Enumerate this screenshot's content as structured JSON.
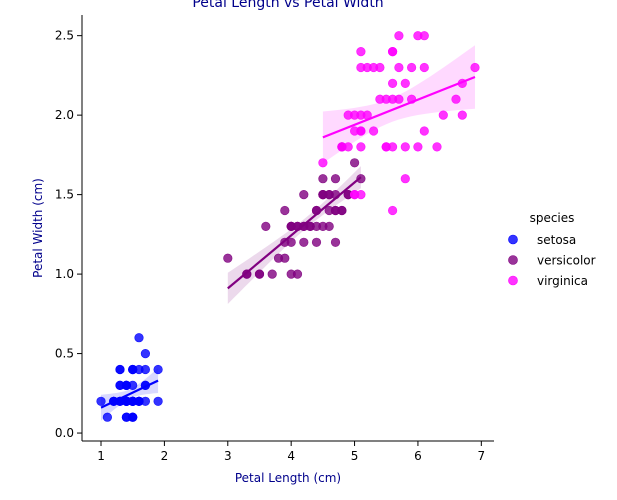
{
  "chart_data": {
    "type": "scatter",
    "title": "Petal Length vs Petal Width",
    "xlabel": "Petal Length (cm)",
    "ylabel": "Petal Width (cm)",
    "xlim": [
      0.7,
      7.2
    ],
    "ylim": [
      -0.05,
      2.63
    ],
    "xticks": [
      1,
      2,
      3,
      4,
      5,
      6,
      7
    ],
    "yticks": [
      0.0,
      0.5,
      1.0,
      1.5,
      2.0,
      2.5
    ],
    "grid": false,
    "legend": {
      "title": "species",
      "placement": "right"
    },
    "series": [
      {
        "name": "setosa",
        "color": "#0000ff",
        "regression": {
          "x": [
            1.0,
            1.9
          ],
          "y": [
            0.16,
            0.33
          ]
        },
        "points": [
          [
            1.0,
            0.2
          ],
          [
            1.1,
            0.1
          ],
          [
            1.2,
            0.2
          ],
          [
            1.2,
            0.2
          ],
          [
            1.3,
            0.2
          ],
          [
            1.3,
            0.3
          ],
          [
            1.3,
            0.4
          ],
          [
            1.3,
            0.2
          ],
          [
            1.4,
            0.2
          ],
          [
            1.4,
            0.3
          ],
          [
            1.4,
            0.1
          ],
          [
            1.4,
            0.2
          ],
          [
            1.4,
            0.3
          ],
          [
            1.4,
            0.2
          ],
          [
            1.4,
            0.2
          ],
          [
            1.4,
            0.1
          ],
          [
            1.5,
            0.2
          ],
          [
            1.5,
            0.4
          ],
          [
            1.5,
            0.1
          ],
          [
            1.5,
            0.2
          ],
          [
            1.5,
            0.3
          ],
          [
            1.5,
            0.2
          ],
          [
            1.5,
            0.4
          ],
          [
            1.5,
            0.1
          ],
          [
            1.5,
            0.2
          ],
          [
            1.6,
            0.2
          ],
          [
            1.6,
            0.6
          ],
          [
            1.6,
            0.4
          ],
          [
            1.6,
            0.2
          ],
          [
            1.6,
            0.2
          ],
          [
            1.7,
            0.4
          ],
          [
            1.7,
            0.3
          ],
          [
            1.7,
            0.5
          ],
          [
            1.7,
            0.2
          ],
          [
            1.9,
            0.2
          ],
          [
            1.9,
            0.4
          ],
          [
            1.5,
            0.2
          ],
          [
            1.4,
            0.2
          ],
          [
            1.6,
            0.2
          ],
          [
            1.3,
            0.3
          ],
          [
            1.4,
            0.2
          ],
          [
            1.5,
            0.2
          ],
          [
            1.3,
            0.2
          ],
          [
            1.5,
            0.1
          ],
          [
            1.2,
            0.2
          ],
          [
            1.5,
            0.4
          ],
          [
            1.3,
            0.4
          ],
          [
            1.4,
            0.3
          ],
          [
            1.7,
            0.3
          ],
          [
            1.5,
            0.2
          ]
        ]
      },
      {
        "name": "versicolor",
        "color": "#800080",
        "regression": {
          "x": [
            3.0,
            5.1
          ],
          "y": [
            0.91,
            1.61
          ]
        },
        "points": [
          [
            3.0,
            1.1
          ],
          [
            3.3,
            1.0
          ],
          [
            3.3,
            1.0
          ],
          [
            3.5,
            1.0
          ],
          [
            3.5,
            1.0
          ],
          [
            3.6,
            1.3
          ],
          [
            3.7,
            1.0
          ],
          [
            3.8,
            1.1
          ],
          [
            3.9,
            1.4
          ],
          [
            3.9,
            1.2
          ],
          [
            3.9,
            1.1
          ],
          [
            4.0,
            1.3
          ],
          [
            4.0,
            1.0
          ],
          [
            4.0,
            1.3
          ],
          [
            4.0,
            1.2
          ],
          [
            4.0,
            1.3
          ],
          [
            4.1,
            1.3
          ],
          [
            4.1,
            1.0
          ],
          [
            4.1,
            1.3
          ],
          [
            4.2,
            1.3
          ],
          [
            4.2,
            1.5
          ],
          [
            4.2,
            1.2
          ],
          [
            4.2,
            1.3
          ],
          [
            4.3,
            1.3
          ],
          [
            4.3,
            1.3
          ],
          [
            4.4,
            1.4
          ],
          [
            4.4,
            1.2
          ],
          [
            4.4,
            1.3
          ],
          [
            4.4,
            1.4
          ],
          [
            4.5,
            1.5
          ],
          [
            4.5,
            1.3
          ],
          [
            4.5,
            1.5
          ],
          [
            4.5,
            1.6
          ],
          [
            4.5,
            1.5
          ],
          [
            4.6,
            1.5
          ],
          [
            4.6,
            1.4
          ],
          [
            4.6,
            1.3
          ],
          [
            4.7,
            1.4
          ],
          [
            4.7,
            1.4
          ],
          [
            4.7,
            1.6
          ],
          [
            4.7,
            1.2
          ],
          [
            4.8,
            1.8
          ],
          [
            4.8,
            1.4
          ],
          [
            4.9,
            1.5
          ],
          [
            4.9,
            1.5
          ],
          [
            5.0,
            1.7
          ],
          [
            5.1,
            1.6
          ],
          [
            4.6,
            1.5
          ],
          [
            4.7,
            1.5
          ],
          [
            4.8,
            1.4
          ]
        ]
      },
      {
        "name": "virginica",
        "color": "#ff00ff",
        "regression": {
          "x": [
            4.5,
            6.9
          ],
          "y": [
            1.86,
            2.24
          ]
        },
        "points": [
          [
            4.5,
            1.7
          ],
          [
            4.8,
            1.8
          ],
          [
            4.8,
            1.8
          ],
          [
            4.9,
            1.8
          ],
          [
            4.9,
            2.0
          ],
          [
            5.0,
            2.0
          ],
          [
            5.0,
            1.5
          ],
          [
            5.0,
            1.9
          ],
          [
            5.0,
            1.5
          ],
          [
            5.1,
            2.4
          ],
          [
            5.1,
            2.3
          ],
          [
            5.1,
            1.9
          ],
          [
            5.1,
            2.0
          ],
          [
            5.1,
            1.8
          ],
          [
            5.1,
            1.5
          ],
          [
            5.1,
            1.9
          ],
          [
            5.2,
            2.3
          ],
          [
            5.2,
            2.0
          ],
          [
            5.3,
            2.3
          ],
          [
            5.3,
            1.9
          ],
          [
            5.4,
            2.3
          ],
          [
            5.4,
            2.1
          ],
          [
            5.5,
            2.1
          ],
          [
            5.5,
            1.8
          ],
          [
            5.5,
            1.8
          ],
          [
            5.6,
            2.4
          ],
          [
            5.6,
            2.2
          ],
          [
            5.6,
            2.1
          ],
          [
            5.6,
            1.8
          ],
          [
            5.6,
            1.4
          ],
          [
            5.6,
            2.4
          ],
          [
            5.7,
            2.5
          ],
          [
            5.7,
            2.3
          ],
          [
            5.7,
            2.1
          ],
          [
            5.8,
            2.2
          ],
          [
            5.8,
            1.8
          ],
          [
            5.8,
            1.6
          ],
          [
            5.9,
            2.3
          ],
          [
            5.9,
            2.1
          ],
          [
            6.0,
            2.5
          ],
          [
            6.0,
            1.8
          ],
          [
            6.1,
            2.5
          ],
          [
            6.1,
            2.3
          ],
          [
            6.1,
            1.9
          ],
          [
            6.3,
            1.8
          ],
          [
            6.4,
            2.0
          ],
          [
            6.6,
            2.1
          ],
          [
            6.7,
            2.2
          ],
          [
            6.7,
            2.0
          ],
          [
            6.9,
            2.3
          ]
        ]
      }
    ]
  }
}
